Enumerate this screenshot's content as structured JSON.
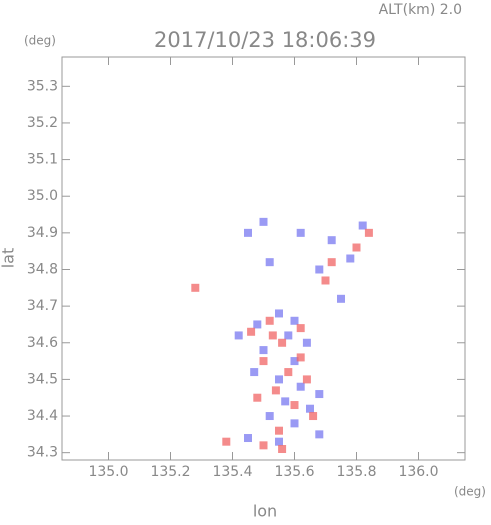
{
  "chart_data": {
    "type": "scatter",
    "title": "2017/10/23 18:06:39",
    "subtitle": "ALT(km) 2.0",
    "y_unit": "(deg)",
    "x_unit": "(deg)",
    "x_label": "lon",
    "y_label": "lat",
    "xlim": [
      134.85,
      136.15
    ],
    "ylim": [
      34.28,
      35.38
    ],
    "xticks": [
      {
        "value": 135,
        "label": "135.0"
      },
      135.2,
      135.4,
      135.6,
      135.8,
      {
        "value": 136,
        "label": "136.0"
      }
    ],
    "yticks": [
      34.3,
      34.4,
      34.5,
      34.6,
      34.7,
      34.8,
      34.9,
      {
        "value": 35,
        "label": "35.0"
      },
      35.1,
      35.2,
      35.3
    ],
    "series": [
      {
        "color": "#7878f0",
        "x": [
          135.5,
          135.45,
          135.62,
          135.52,
          135.72,
          135.82,
          135.78,
          135.68,
          135.75,
          135.55,
          135.48,
          135.58,
          135.64,
          135.5,
          135.6,
          135.55,
          135.62,
          135.68,
          135.57,
          135.52,
          135.6,
          135.68,
          135.45,
          135.55,
          135.42,
          135.6,
          135.47,
          135.65
        ],
        "values": [
          34.93,
          34.9,
          34.9,
          34.82,
          34.88,
          34.92,
          34.83,
          34.8,
          34.72,
          34.68,
          34.65,
          34.62,
          34.6,
          34.58,
          34.55,
          34.5,
          34.48,
          34.46,
          34.44,
          34.4,
          34.38,
          34.35,
          34.34,
          34.33,
          34.62,
          34.66,
          34.52,
          34.42
        ]
      },
      {
        "color": "#f06464",
        "x": [
          135.28,
          135.84,
          135.8,
          135.72,
          135.7,
          135.52,
          135.62,
          135.46,
          135.56,
          135.5,
          135.58,
          135.64,
          135.54,
          135.6,
          135.66,
          135.55,
          135.38,
          135.56,
          135.5,
          135.62,
          135.48,
          135.53
        ],
        "values": [
          34.75,
          34.9,
          34.86,
          34.82,
          34.77,
          34.66,
          34.64,
          34.63,
          34.6,
          34.55,
          34.52,
          34.5,
          34.47,
          34.43,
          34.4,
          34.36,
          34.33,
          34.31,
          34.32,
          34.56,
          34.45,
          34.62
        ]
      }
    ]
  }
}
